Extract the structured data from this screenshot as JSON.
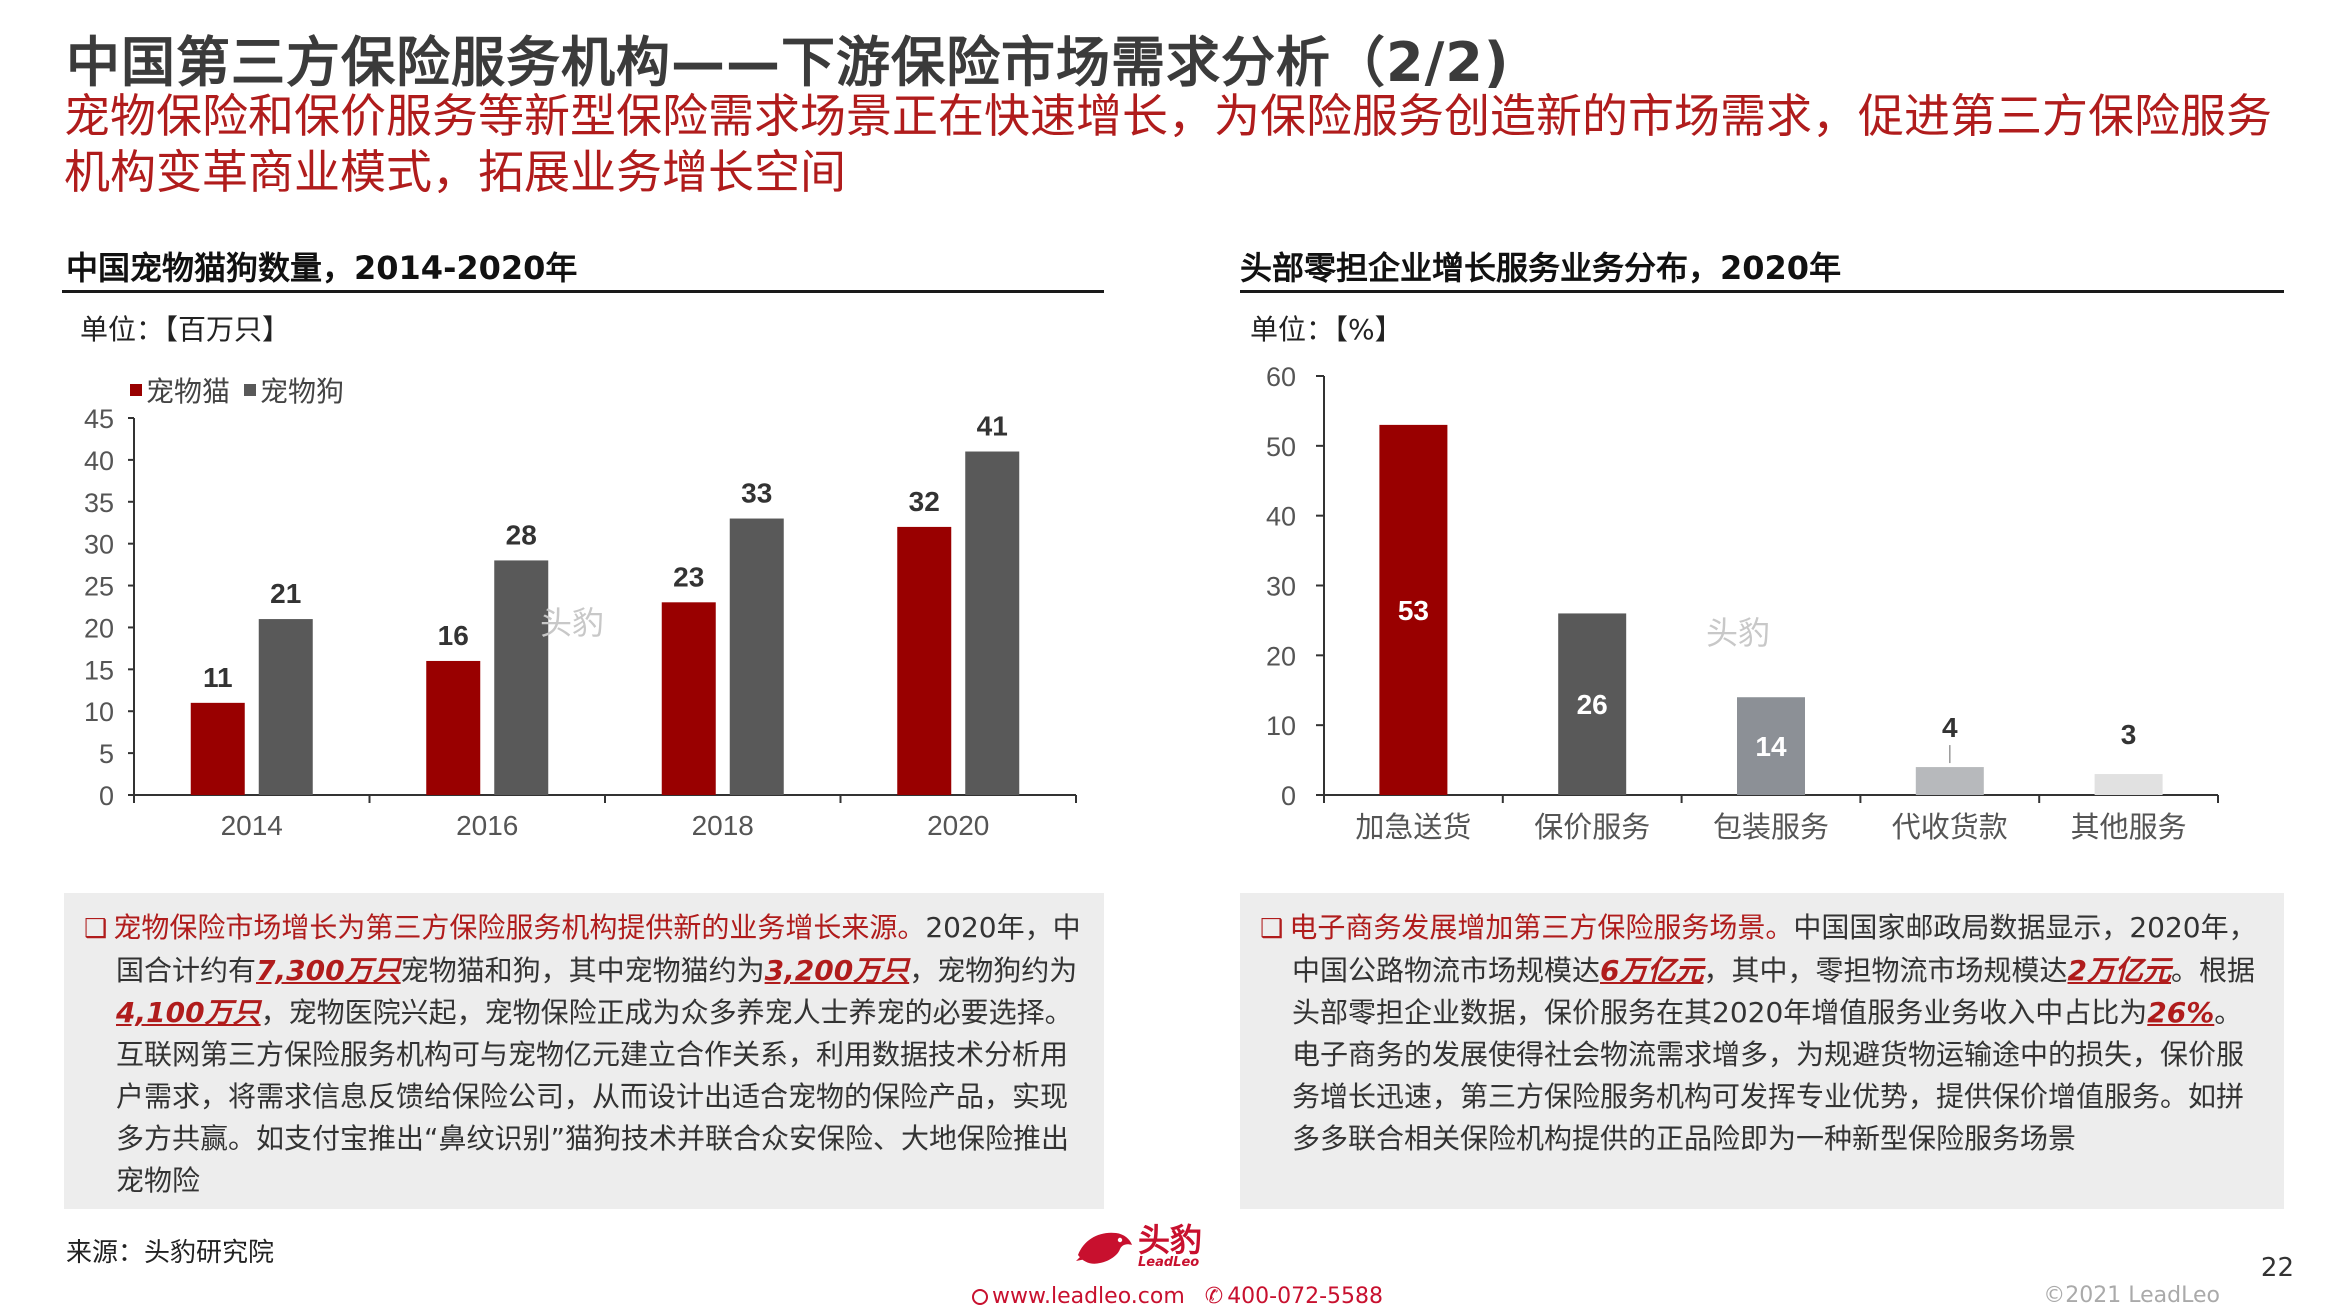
{
  "header": {
    "title": "中国第三方保险服务机构——下游保险市场需求分析（2/2)",
    "subtitle": "宠物保险和保价服务等新型保险需求场景正在快速增长，为保险服务创造新的市场需求，促进第三方保险服务机构变革商业模式，拓展业务增长空间"
  },
  "left_panel": {
    "title": "中国宠物猫狗数量，2014-2020年",
    "unit": "单位：【百万只】",
    "legend": [
      "宠物猫",
      "宠物狗"
    ],
    "text": {
      "lead": "宠物保险市场增长为第三方保险服务机构提供新的业务增长来源。",
      "p1": "2020年，中国合计约有",
      "h1": "7,300万只",
      "p2": "宠物猫和狗，其中宠物猫约为",
      "h2": "3,200万只",
      "p3": "，宠物狗约为",
      "h3": "4,100万只",
      "p4": "，宠物医院兴起，宠物保险正成为众多养宠人士养宠的必要选择。互联网第三方保险服务机构可与宠物亿元建立合作关系，利用数据技术分析用户需求，将需求信息反馈给保险公司，从而设计出适合宠物的保险产品，实现多方共赢。如支付宝推出“鼻纹识别”猫狗技术并联合众安保险、大地保险推出宠物险"
    }
  },
  "right_panel": {
    "title": "头部零担企业增长服务业务分布，2020年",
    "unit": "单位：【%】",
    "text": {
      "lead": "电子商务发展增加第三方保险服务场景。",
      "p1": "中国国家邮政局数据显示，2020年，中国公路物流市场规模达",
      "h1": "6万亿元",
      "p2": "，其中，零担物流市场规模达",
      "h2": "2万亿元",
      "p3": "。根据头部零担企业数据，保价服务在其2020年增值服务业务收入中占比为",
      "h3": "26%",
      "p4": "。电子商务的发展使得社会物流需求增多，为规避货物运输途中的损失，保价服务增长迅速，第三方保险服务机构可发挥专业优势，提供保价增值服务。如拼多多联合相关保险机构提供的正品险即为一种新型保险服务场景"
    }
  },
  "chart_data": [
    {
      "type": "bar",
      "categories": [
        "2014",
        "2016",
        "2018",
        "2020"
      ],
      "series": [
        {
          "name": "宠物猫",
          "values": [
            11,
            16,
            23,
            32
          ],
          "color": "#990000"
        },
        {
          "name": "宠物狗",
          "values": [
            21,
            28,
            33,
            41
          ],
          "color": "#595959"
        }
      ],
      "yticks": [
        "0",
        "5",
        "10",
        "15",
        "20",
        "25",
        "30",
        "35",
        "40",
        "45"
      ],
      "ylim": [
        0,
        45
      ],
      "legend": "top-left",
      "grid": false
    },
    {
      "type": "bar",
      "categories": [
        "加急送货",
        "保价服务",
        "包装服务",
        "代收货款",
        "其他服务"
      ],
      "values": [
        53,
        26,
        14,
        4,
        3
      ],
      "colors": [
        "#990000",
        "#595959",
        "#8c9096",
        "#b7b9bc",
        "#e1e1e1"
      ],
      "label_colors": [
        "#ffffff",
        "#ffffff",
        "#ffffff",
        "#333333",
        "#333333"
      ],
      "yticks": [
        "0",
        "10",
        "20",
        "30",
        "40",
        "50",
        "60"
      ],
      "ylim": [
        0,
        60
      ],
      "grid": false
    }
  ],
  "footer": {
    "source": "来源：头豹研究院",
    "page": "22",
    "copyright": "©2021 LeadLeo",
    "website": "www.leadleo.com",
    "phone": "400-072-5588",
    "logo_cn": "头豹",
    "logo_en": "LeadLeo"
  },
  "watermarks": [
    "头豹",
    "头豹",
    "头豹",
    "头豹"
  ]
}
